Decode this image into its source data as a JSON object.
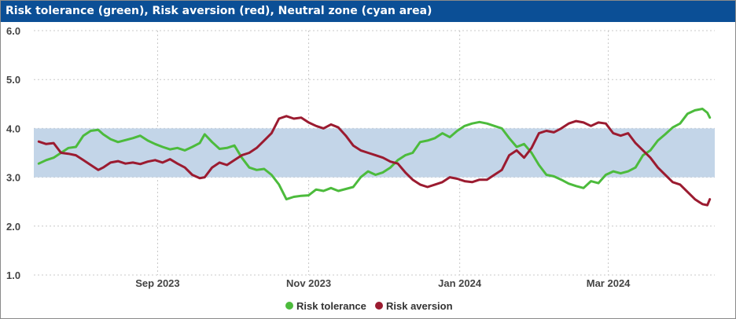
{
  "chart_data": {
    "type": "line",
    "title": "Risk tolerance (green), Risk aversion (red), Neutral zone (cyan area)",
    "ylim": [
      1.0,
      6.0
    ],
    "yticks": [
      "1.0",
      "2.0",
      "3.0",
      "4.0",
      "5.0",
      "6.0"
    ],
    "x_range": [
      "2023-07-13",
      "2024-04-13"
    ],
    "xticks": [
      {
        "date": "2023-09-01",
        "label": "Sep 2023"
      },
      {
        "date": "2023-11-01",
        "label": "Nov 2023"
      },
      {
        "date": "2024-01-01",
        "label": "Jan 2024"
      },
      {
        "date": "2024-03-01",
        "label": "Mar 2024"
      }
    ],
    "neutral_zone": [
      3.0,
      4.0
    ],
    "grid": true,
    "legend_position": "bottom-center",
    "series": [
      {
        "name": "Risk tolerance",
        "color": "#4cbb3c",
        "points": [
          [
            "2023-07-15",
            3.28
          ],
          [
            "2023-07-18",
            3.35
          ],
          [
            "2023-07-21",
            3.4
          ],
          [
            "2023-07-24",
            3.5
          ],
          [
            "2023-07-27",
            3.6
          ],
          [
            "2023-07-30",
            3.62
          ],
          [
            "2023-08-02",
            3.85
          ],
          [
            "2023-08-05",
            3.95
          ],
          [
            "2023-08-08",
            3.97
          ],
          [
            "2023-08-10",
            3.88
          ],
          [
            "2023-08-13",
            3.78
          ],
          [
            "2023-08-16",
            3.72
          ],
          [
            "2023-08-19",
            3.76
          ],
          [
            "2023-08-22",
            3.8
          ],
          [
            "2023-08-25",
            3.85
          ],
          [
            "2023-08-28",
            3.75
          ],
          [
            "2023-08-31",
            3.68
          ],
          [
            "2023-09-03",
            3.62
          ],
          [
            "2023-09-06",
            3.57
          ],
          [
            "2023-09-09",
            3.6
          ],
          [
            "2023-09-12",
            3.55
          ],
          [
            "2023-09-15",
            3.62
          ],
          [
            "2023-09-18",
            3.7
          ],
          [
            "2023-09-20",
            3.88
          ],
          [
            "2023-09-23",
            3.72
          ],
          [
            "2023-09-26",
            3.58
          ],
          [
            "2023-09-29",
            3.6
          ],
          [
            "2023-10-02",
            3.65
          ],
          [
            "2023-10-05",
            3.4
          ],
          [
            "2023-10-08",
            3.2
          ],
          [
            "2023-10-11",
            3.15
          ],
          [
            "2023-10-14",
            3.17
          ],
          [
            "2023-10-17",
            3.05
          ],
          [
            "2023-10-20",
            2.85
          ],
          [
            "2023-10-23",
            2.55
          ],
          [
            "2023-10-26",
            2.6
          ],
          [
            "2023-10-29",
            2.62
          ],
          [
            "2023-11-01",
            2.63
          ],
          [
            "2023-11-04",
            2.75
          ],
          [
            "2023-11-07",
            2.72
          ],
          [
            "2023-11-10",
            2.78
          ],
          [
            "2023-11-13",
            2.72
          ],
          [
            "2023-11-16",
            2.76
          ],
          [
            "2023-11-19",
            2.8
          ],
          [
            "2023-11-22",
            3.0
          ],
          [
            "2023-11-25",
            3.12
          ],
          [
            "2023-11-28",
            3.05
          ],
          [
            "2023-12-01",
            3.1
          ],
          [
            "2023-12-04",
            3.2
          ],
          [
            "2023-12-07",
            3.35
          ],
          [
            "2023-12-10",
            3.45
          ],
          [
            "2023-12-13",
            3.5
          ],
          [
            "2023-12-16",
            3.72
          ],
          [
            "2023-12-19",
            3.75
          ],
          [
            "2023-12-22",
            3.8
          ],
          [
            "2023-12-25",
            3.9
          ],
          [
            "2023-12-28",
            3.82
          ],
          [
            "2023-12-31",
            3.95
          ],
          [
            "2024-01-03",
            4.05
          ],
          [
            "2024-01-06",
            4.1
          ],
          [
            "2024-01-09",
            4.13
          ],
          [
            "2024-01-12",
            4.1
          ],
          [
            "2024-01-15",
            4.05
          ],
          [
            "2024-01-18",
            4.0
          ],
          [
            "2024-01-21",
            3.8
          ],
          [
            "2024-01-24",
            3.62
          ],
          [
            "2024-01-27",
            3.68
          ],
          [
            "2024-01-30",
            3.5
          ],
          [
            "2024-02-02",
            3.25
          ],
          [
            "2024-02-05",
            3.05
          ],
          [
            "2024-02-08",
            3.02
          ],
          [
            "2024-02-11",
            2.95
          ],
          [
            "2024-02-14",
            2.87
          ],
          [
            "2024-02-17",
            2.82
          ],
          [
            "2024-02-20",
            2.78
          ],
          [
            "2024-02-23",
            2.92
          ],
          [
            "2024-02-26",
            2.88
          ],
          [
            "2024-02-29",
            3.05
          ],
          [
            "2024-03-03",
            3.12
          ],
          [
            "2024-03-06",
            3.08
          ],
          [
            "2024-03-09",
            3.12
          ],
          [
            "2024-03-12",
            3.2
          ],
          [
            "2024-03-15",
            3.45
          ],
          [
            "2024-03-18",
            3.55
          ],
          [
            "2024-03-21",
            3.75
          ],
          [
            "2024-03-24",
            3.88
          ],
          [
            "2024-03-27",
            4.02
          ],
          [
            "2024-03-30",
            4.1
          ],
          [
            "2024-04-02",
            4.3
          ],
          [
            "2024-04-05",
            4.37
          ],
          [
            "2024-04-08",
            4.4
          ],
          [
            "2024-04-10",
            4.32
          ],
          [
            "2024-04-11",
            4.22
          ]
        ]
      },
      {
        "name": "Risk aversion",
        "color": "#9b1b30",
        "points": [
          [
            "2023-07-15",
            3.73
          ],
          [
            "2023-07-18",
            3.68
          ],
          [
            "2023-07-21",
            3.7
          ],
          [
            "2023-07-24",
            3.5
          ],
          [
            "2023-07-27",
            3.48
          ],
          [
            "2023-07-30",
            3.45
          ],
          [
            "2023-08-02",
            3.35
          ],
          [
            "2023-08-05",
            3.25
          ],
          [
            "2023-08-08",
            3.15
          ],
          [
            "2023-08-10",
            3.2
          ],
          [
            "2023-08-13",
            3.3
          ],
          [
            "2023-08-16",
            3.33
          ],
          [
            "2023-08-19",
            3.28
          ],
          [
            "2023-08-22",
            3.3
          ],
          [
            "2023-08-25",
            3.27
          ],
          [
            "2023-08-28",
            3.32
          ],
          [
            "2023-08-31",
            3.35
          ],
          [
            "2023-09-03",
            3.3
          ],
          [
            "2023-09-06",
            3.37
          ],
          [
            "2023-09-09",
            3.28
          ],
          [
            "2023-09-12",
            3.2
          ],
          [
            "2023-09-15",
            3.05
          ],
          [
            "2023-09-18",
            2.98
          ],
          [
            "2023-09-20",
            3.0
          ],
          [
            "2023-09-23",
            3.2
          ],
          [
            "2023-09-26",
            3.3
          ],
          [
            "2023-09-29",
            3.25
          ],
          [
            "2023-10-02",
            3.35
          ],
          [
            "2023-10-05",
            3.45
          ],
          [
            "2023-10-08",
            3.5
          ],
          [
            "2023-10-11",
            3.6
          ],
          [
            "2023-10-14",
            3.75
          ],
          [
            "2023-10-17",
            3.9
          ],
          [
            "2023-10-20",
            4.2
          ],
          [
            "2023-10-23",
            4.25
          ],
          [
            "2023-10-26",
            4.2
          ],
          [
            "2023-10-29",
            4.22
          ],
          [
            "2023-11-01",
            4.12
          ],
          [
            "2023-11-04",
            4.05
          ],
          [
            "2023-11-07",
            4.0
          ],
          [
            "2023-11-10",
            4.08
          ],
          [
            "2023-11-13",
            4.02
          ],
          [
            "2023-11-16",
            3.85
          ],
          [
            "2023-11-19",
            3.65
          ],
          [
            "2023-11-22",
            3.55
          ],
          [
            "2023-11-25",
            3.5
          ],
          [
            "2023-11-28",
            3.45
          ],
          [
            "2023-12-01",
            3.4
          ],
          [
            "2023-12-04",
            3.32
          ],
          [
            "2023-12-07",
            3.28
          ],
          [
            "2023-12-10",
            3.1
          ],
          [
            "2023-12-13",
            2.95
          ],
          [
            "2023-12-16",
            2.85
          ],
          [
            "2023-12-19",
            2.8
          ],
          [
            "2023-12-22",
            2.85
          ],
          [
            "2023-12-25",
            2.9
          ],
          [
            "2023-12-28",
            3.0
          ],
          [
            "2023-12-31",
            2.97
          ],
          [
            "2024-01-03",
            2.92
          ],
          [
            "2024-01-06",
            2.9
          ],
          [
            "2024-01-09",
            2.95
          ],
          [
            "2024-01-12",
            2.95
          ],
          [
            "2024-01-15",
            3.05
          ],
          [
            "2024-01-18",
            3.15
          ],
          [
            "2024-01-21",
            3.45
          ],
          [
            "2024-01-24",
            3.55
          ],
          [
            "2024-01-27",
            3.4
          ],
          [
            "2024-01-30",
            3.6
          ],
          [
            "2024-02-02",
            3.9
          ],
          [
            "2024-02-05",
            3.95
          ],
          [
            "2024-02-08",
            3.92
          ],
          [
            "2024-02-11",
            4.0
          ],
          [
            "2024-02-14",
            4.1
          ],
          [
            "2024-02-17",
            4.15
          ],
          [
            "2024-02-20",
            4.12
          ],
          [
            "2024-02-23",
            4.05
          ],
          [
            "2024-02-26",
            4.12
          ],
          [
            "2024-02-29",
            4.1
          ],
          [
            "2024-03-03",
            3.9
          ],
          [
            "2024-03-06",
            3.85
          ],
          [
            "2024-03-09",
            3.9
          ],
          [
            "2024-03-12",
            3.7
          ],
          [
            "2024-03-15",
            3.55
          ],
          [
            "2024-03-18",
            3.4
          ],
          [
            "2024-03-21",
            3.2
          ],
          [
            "2024-03-24",
            3.05
          ],
          [
            "2024-03-27",
            2.9
          ],
          [
            "2024-03-30",
            2.85
          ],
          [
            "2024-04-02",
            2.7
          ],
          [
            "2024-04-05",
            2.55
          ],
          [
            "2024-04-08",
            2.45
          ],
          [
            "2024-04-10",
            2.43
          ],
          [
            "2024-04-11",
            2.55
          ]
        ]
      }
    ],
    "neutral_zone_color": "#c3d5e8"
  }
}
